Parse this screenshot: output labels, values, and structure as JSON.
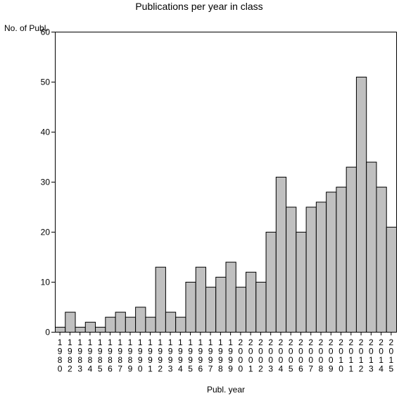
{
  "chart_data": {
    "type": "bar",
    "title": "Publications per year in class",
    "ylabel": "No. of Publ.",
    "xlabel": "Publ. year",
    "ylim": [
      0,
      60
    ],
    "yticks": [
      0,
      10,
      20,
      30,
      40,
      50,
      60
    ],
    "categories": [
      "1980",
      "1982",
      "1983",
      "1984",
      "1985",
      "1986",
      "1987",
      "1989",
      "1990",
      "1991",
      "1992",
      "1993",
      "1994",
      "1995",
      "1996",
      "1997",
      "1998",
      "1999",
      "2000",
      "2001",
      "2002",
      "2003",
      "2004",
      "2005",
      "2006",
      "2007",
      "2008",
      "2009",
      "2010",
      "2011",
      "2012",
      "2013",
      "2014",
      "2015"
    ],
    "values": [
      1,
      4,
      1,
      2,
      1,
      3,
      4,
      3,
      5,
      3,
      13,
      4,
      3,
      10,
      13,
      9,
      11,
      14,
      9,
      12,
      10,
      20,
      31,
      25,
      20,
      25,
      26,
      28,
      29,
      33,
      51,
      34,
      29,
      21
    ],
    "bar_color": "#c0c0c0",
    "grid": false
  }
}
